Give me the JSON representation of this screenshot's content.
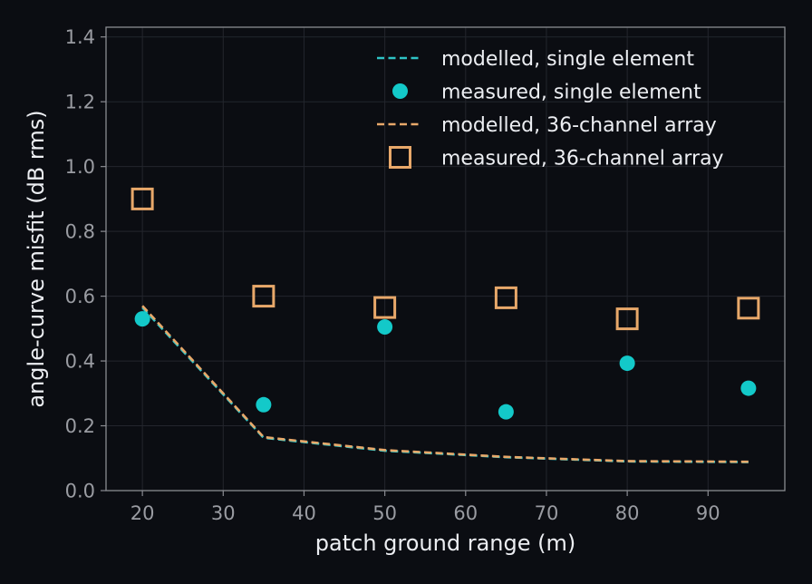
{
  "chart_data": {
    "type": "line",
    "title": "",
    "xlabel": "patch ground range (m)",
    "ylabel": "angle-curve misfit (dB rms)",
    "xlim": [
      15.5,
      99.5
    ],
    "ylim": [
      0.0,
      1.43
    ],
    "x_ticks": [
      20,
      30,
      40,
      50,
      60,
      70,
      80,
      90
    ],
    "y_ticks": [
      0.0,
      0.2,
      0.4,
      0.6,
      0.8,
      1.0,
      1.2,
      1.4
    ],
    "grid": true,
    "legend_position": "top-right",
    "x": [
      20,
      35,
      50,
      65,
      80,
      95
    ],
    "series": [
      {
        "name": "modelled, single element",
        "style": "dashed-line",
        "color": "#2ec4c6",
        "values": [
          0.565,
          0.163,
          0.123,
          0.103,
          0.09,
          0.088
        ]
      },
      {
        "name": "measured, single element",
        "style": "circle-marker",
        "color": "#13c9c9",
        "values": [
          0.53,
          0.265,
          0.505,
          0.243,
          0.393,
          0.316
        ]
      },
      {
        "name": "modelled, 36-channel array",
        "style": "dashed-line",
        "color": "#e8a86a",
        "values": [
          0.57,
          0.165,
          0.125,
          0.104,
          0.091,
          0.089
        ]
      },
      {
        "name": "measured, 36-channel array",
        "style": "square-marker",
        "color": "#e8a86a",
        "values": [
          0.9,
          0.6,
          0.565,
          0.595,
          0.53,
          0.563
        ]
      }
    ]
  }
}
